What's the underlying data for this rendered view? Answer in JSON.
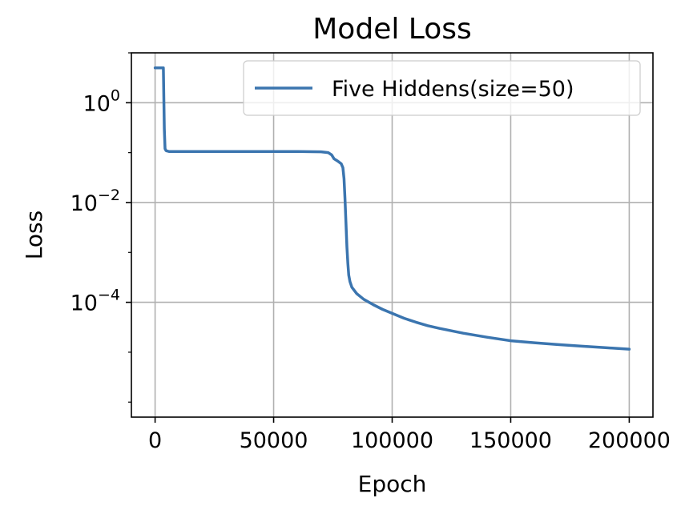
{
  "chart_data": {
    "type": "line",
    "title": "Model Loss",
    "xlabel": "Epoch",
    "ylabel": "Loss",
    "xlim": [
      -10000,
      210000
    ],
    "ylim": [
      5e-07,
      10
    ],
    "yscale": "log",
    "grid": true,
    "legend_position": "top-right",
    "x_ticks": [
      0,
      50000,
      100000,
      150000,
      200000
    ],
    "x_tick_labels": [
      "0",
      "50000",
      "100000",
      "150000",
      "200000"
    ],
    "y_ticks": [
      1,
      0.01,
      0.0001
    ],
    "y_tick_labels": [
      {
        "base": "10",
        "exp": "0"
      },
      {
        "base": "10",
        "exp": "−2"
      },
      {
        "base": "10",
        "exp": "−4"
      }
    ],
    "series": [
      {
        "name": "Five Hiddens(size=50)",
        "color": "#3b75af",
        "x": [
          0,
          3000,
          3500,
          3900,
          4200,
          4600,
          5000,
          6000,
          10000,
          20000,
          40000,
          60000,
          70000,
          73000,
          74500,
          75500,
          77000,
          78500,
          79200,
          79700,
          80100,
          80500,
          80900,
          81300,
          81700,
          82200,
          83000,
          85000,
          88000,
          92000,
          96000,
          100000,
          105000,
          110000,
          115000,
          120000,
          130000,
          140000,
          150000,
          160000,
          170000,
          180000,
          190000,
          200000
        ],
        "values": [
          5.0,
          5.0,
          5.0,
          0.3,
          0.12,
          0.11,
          0.108,
          0.105,
          0.105,
          0.105,
          0.105,
          0.105,
          0.104,
          0.1,
          0.09,
          0.075,
          0.068,
          0.06,
          0.05,
          0.03,
          0.012,
          0.004,
          0.0013,
          0.0006,
          0.00035,
          0.00026,
          0.0002,
          0.00015,
          0.000115,
          9e-05,
          7.2e-05,
          6e-05,
          4.8e-05,
          4e-05,
          3.4e-05,
          3e-05,
          2.4e-05,
          2e-05,
          1.7e-05,
          1.55e-05,
          1.42e-05,
          1.32e-05,
          1.23e-05,
          1.15e-05
        ]
      }
    ]
  }
}
